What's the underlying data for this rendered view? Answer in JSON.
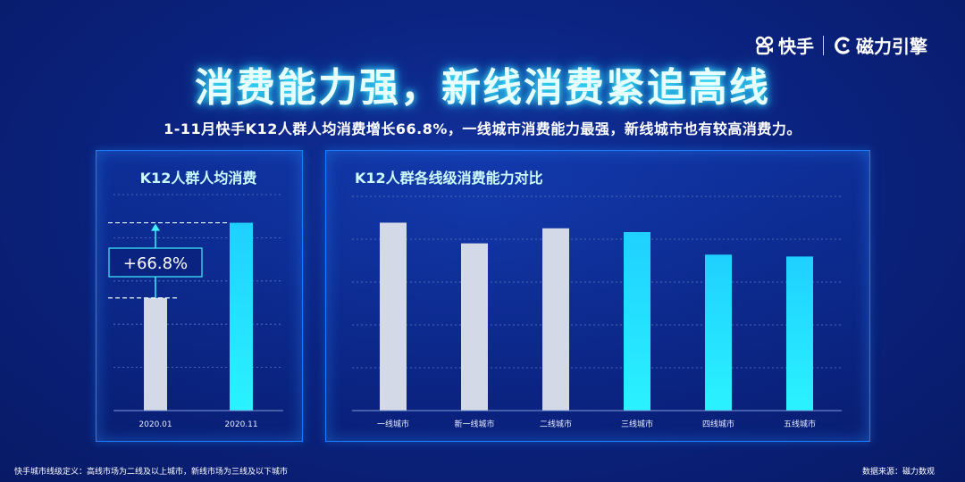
{
  "brand": {
    "kuaishou": "快手",
    "cili": "磁力引擎"
  },
  "header": {
    "title": "消费能力强，新线消费紧追高线",
    "subtitle": "1-11月快手K12人群人均消费增长66.8%，一线城市消费能力最强，新线城市也有较高消费力。"
  },
  "chart_data": [
    {
      "type": "bar",
      "title": "K12人群人均消费",
      "categories": [
        "2020.01",
        "2020.11"
      ],
      "values": [
        60,
        100
      ],
      "ylim": [
        0,
        115
      ],
      "annotation": "+66.8%",
      "colors": [
        "#d3d9e6",
        "#1de4ff"
      ]
    },
    {
      "type": "bar",
      "title": "K12人群各线级消费能力对比",
      "categories": [
        "一线城市",
        "新一线城市",
        "二线城市",
        "三线城市",
        "四线城市",
        "五线城市"
      ],
      "values": [
        100,
        89,
        97,
        95,
        83,
        82
      ],
      "ylim": [
        0,
        114
      ],
      "colors": [
        "#d3d9e6",
        "#d3d9e6",
        "#d3d9e6",
        "#1de4ff",
        "#1de4ff",
        "#1de4ff"
      ]
    }
  ],
  "footer": {
    "left": "快手城市线级定义：高线市场为二线及以上城市，新线市场为三线及以下城市",
    "right": "数据来源：磁力数观"
  }
}
